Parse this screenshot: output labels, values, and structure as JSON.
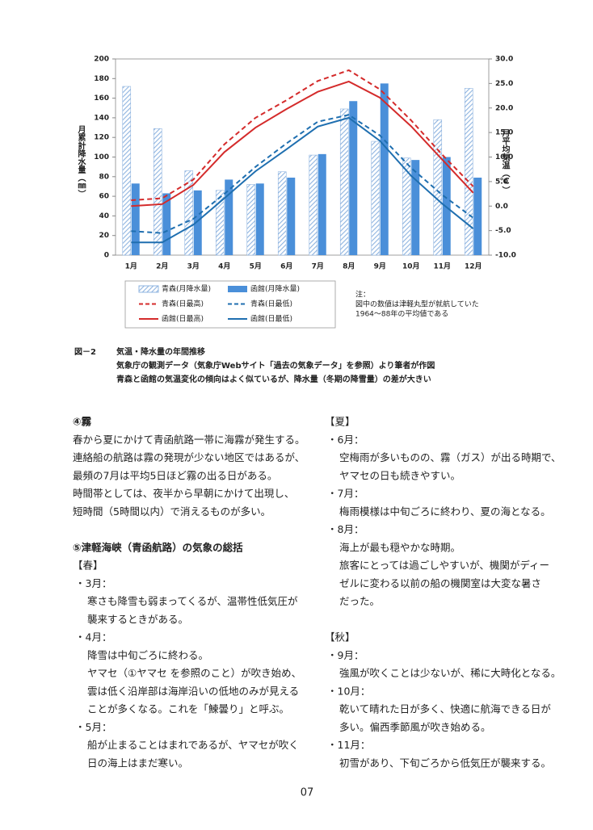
{
  "chart_data": {
    "type": "combo",
    "y_label": "月累計降水量（㎜）",
    "y2_label": "月平均気温（℃）",
    "categories": [
      "1月",
      "2月",
      "3月",
      "4月",
      "5月",
      "6月",
      "7月",
      "8月",
      "9月",
      "10月",
      "11月",
      "12月"
    ],
    "ylim": [
      0,
      200
    ],
    "yticks": [
      0,
      20,
      40,
      60,
      80,
      100,
      120,
      140,
      160,
      180,
      200
    ],
    "y2lim": [
      -10,
      30
    ],
    "y2ticks": [
      {
        "value": -10,
        "label": "-10.0"
      },
      {
        "value": -5,
        "label": "-5.0"
      },
      {
        "value": 0,
        "label": "0.0"
      },
      {
        "value": 5,
        "label": "5.0"
      },
      {
        "value": 10,
        "label": "10.0"
      },
      {
        "value": 15,
        "label": "15.0"
      },
      {
        "value": 20,
        "label": "20.0"
      },
      {
        "value": 25,
        "label": "25.0"
      },
      {
        "value": 30,
        "label": "30.0"
      }
    ],
    "series": [
      {
        "name": "青森(月降水量)",
        "type": "bar",
        "pattern": "hatch",
        "color": "#8fb4e0",
        "values": [
          172,
          129,
          86,
          66,
          72,
          85,
          102,
          149,
          116,
          99,
          138,
          170
        ]
      },
      {
        "name": "函館(月降水量)",
        "type": "bar",
        "color": "#4a8fd9",
        "values": [
          73,
          63,
          66,
          77,
          73,
          79,
          103,
          157,
          175,
          97,
          100,
          79
        ]
      },
      {
        "name": "青森(日最高)",
        "type": "line",
        "dashed": true,
        "axis": "y2",
        "color": "#d42b2b",
        "values": [
          1.2,
          1.6,
          5.4,
          12.6,
          18.0,
          21.6,
          25.5,
          27.7,
          23.8,
          17.5,
          10.5,
          4.0
        ]
      },
      {
        "name": "青森(日最低)",
        "type": "line",
        "dashed": true,
        "axis": "y2",
        "color": "#1f6fb0",
        "values": [
          -5.1,
          -5.5,
          -2.6,
          2.5,
          8.0,
          12.8,
          17.2,
          18.6,
          14.4,
          7.8,
          2.3,
          -2.4
        ]
      },
      {
        "name": "函館(日最高)",
        "type": "line",
        "dashed": false,
        "axis": "y2",
        "color": "#d42b2b",
        "values": [
          0.0,
          0.4,
          4.3,
          11.0,
          16.0,
          19.8,
          23.3,
          25.4,
          22.1,
          16.3,
          9.5,
          2.7
        ]
      },
      {
        "name": "函館(日最低)",
        "type": "line",
        "dashed": false,
        "axis": "y2",
        "color": "#1f6fb0",
        "values": [
          -7.4,
          -7.4,
          -3.8,
          1.6,
          7.1,
          11.6,
          16.2,
          18.0,
          13.3,
          6.2,
          0.5,
          -4.6
        ]
      }
    ],
    "note": [
      "注：",
      "図中の数値は津軽丸型が就航していた",
      "1964～88年の平均値である"
    ]
  },
  "caption": {
    "label": "図－2",
    "lines": [
      "気温・降水量の年間推移",
      "気象庁の観測データ（気象庁Webサイト「過去の気象データ」を参照）より筆者が作図",
      "青森と函館の気温変化の傾向はよく似ているが、降水量（冬期の降雪量）の差が大きい"
    ]
  },
  "columns": [
    [
      {
        "heading": "④霧",
        "lines": [
          "春から夏にかけて青函航路一帯に海霧が発生する。",
          "連絡船の航路は霧の発現が少ない地区ではあるが、",
          "最頻の7月は平均5日ほど霧の出る日がある。",
          "時間帯としては、夜半から早朝にかけて出現し、",
          "短時間（5時間以内）で消えるものが多い。"
        ]
      },
      {
        "heading": "⑤津軽海峡（青函航路）の気象の総括",
        "season": "【春】",
        "items": [
          {
            "label": "・3月：",
            "lines": [
              "寒さも降雪も弱まってくるが、温帯性低気圧が",
              "襲来するときがある。"
            ]
          },
          {
            "label": "・4月：",
            "lines": [
              "降雪は中旬ごろに終わる。",
              "ヤマセ（①ヤマセ を参照のこと）が吹き始め、",
              "雲は低く沿岸部は海岸沿いの低地のみが見える",
              "ことが多くなる。これを「鰊曇り」と呼ぶ。"
            ]
          },
          {
            "label": "・5月：",
            "lines": [
              "船が止まることはまれであるが、ヤマセが吹く",
              "日の海上はまだ寒い。"
            ]
          }
        ]
      }
    ],
    [
      {
        "season": "【夏】",
        "items": [
          {
            "label": "・6月：",
            "lines": [
              "空梅雨が多いものの、霧（ガス）が出る時期で、",
              "ヤマセの日も続きやすい。"
            ]
          },
          {
            "label": "・7月：",
            "lines": [
              "梅雨模様は中旬ごろに終わり、夏の海となる。"
            ]
          },
          {
            "label": "・8月：",
            "lines": [
              "海上が最も穏やかな時期。",
              "旅客にとっては過ごしやすいが、機関がディー",
              "ゼルに変わる以前の船の機関室は大変な暑さ",
              "だった。"
            ]
          }
        ]
      },
      {
        "season": "【秋】",
        "items": [
          {
            "label": "・9月：",
            "lines": [
              "強風が吹くことは少ないが、稀に大時化となる。"
            ]
          },
          {
            "label": "・10月：",
            "lines": [
              "乾いて晴れた日が多く、快適に航海できる日が",
              "多い。偏西季節風が吹き始める。"
            ]
          },
          {
            "label": "・11月：",
            "lines": [
              "初雪があり、下旬ごろから低気圧が襲来する。"
            ]
          }
        ]
      }
    ]
  ],
  "page_number": "07"
}
